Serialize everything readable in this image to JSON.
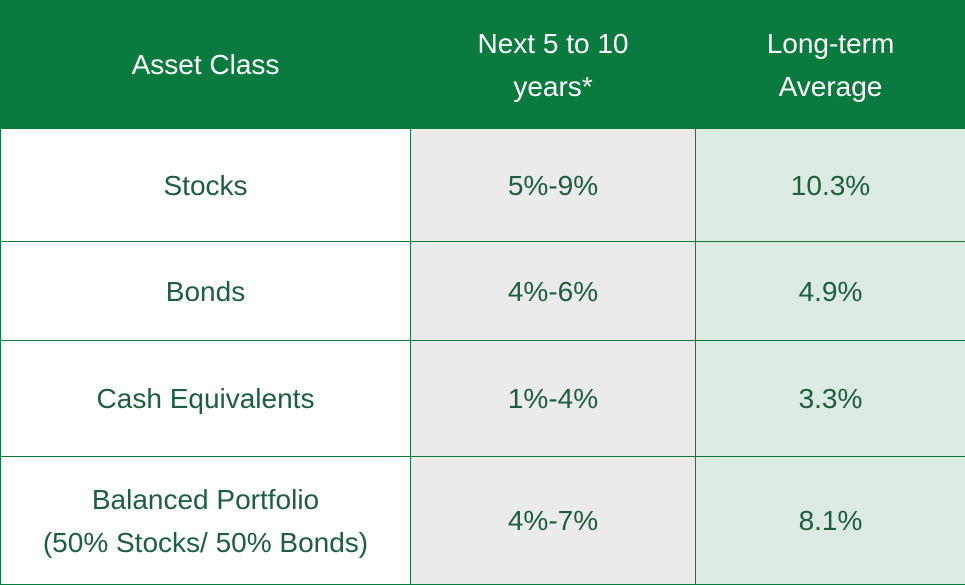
{
  "table": {
    "header": [
      [
        "Asset Class"
      ],
      [
        "Next 5 to 10",
        "years*"
      ],
      [
        "Long-term",
        "Average"
      ]
    ],
    "rows": [
      [
        [
          "Stocks"
        ],
        [
          "5%-9%"
        ],
        [
          "10.3%"
        ]
      ],
      [
        [
          "Bonds"
        ],
        [
          "4%-6%"
        ],
        [
          "4.9%"
        ]
      ],
      [
        [
          "Cash Equivalents"
        ],
        [
          "1%-4%"
        ],
        [
          "3.3%"
        ]
      ],
      [
        [
          "Balanced Portfolio",
          "(50% Stocks/ 50% Bonds)"
        ],
        [
          "4%-7%"
        ],
        [
          "8.1%"
        ]
      ]
    ]
  }
}
